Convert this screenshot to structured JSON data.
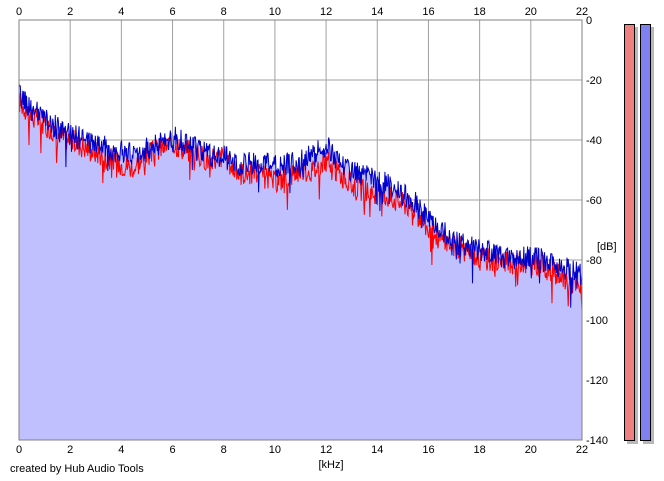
{
  "footer": {
    "credit": "created by Hub Audio Tools"
  },
  "meters": {
    "left_color": "#f08080",
    "right_color": "#8080f0"
  },
  "chart_data": {
    "type": "line",
    "subtype": "frequency-spectrum",
    "xlabel": "[kHz]",
    "ylabel": "[dB]",
    "xlim": [
      0,
      22
    ],
    "ylim": [
      -140,
      0
    ],
    "x_ticks": [
      0,
      2,
      4,
      6,
      8,
      10,
      12,
      14,
      16,
      18,
      20,
      22
    ],
    "y_ticks": [
      0,
      -20,
      -40,
      -60,
      -80,
      -100,
      -120,
      -140
    ],
    "x_tick_labels": [
      "0",
      "2",
      "4",
      "6",
      "8",
      "10",
      "12",
      "14",
      "16",
      "18",
      "20",
      "22"
    ],
    "y_tick_labels": [
      "0",
      "-20",
      "-40",
      "-60",
      "-80",
      "-100",
      "-120",
      "-140"
    ],
    "grid": true,
    "fill_color": "#c0c0ff",
    "series": [
      {
        "color": "#ff0000",
        "x": [
          0,
          0.5,
          1,
          1.5,
          2,
          2.5,
          3,
          3.5,
          4,
          4.5,
          5,
          5.5,
          6,
          6.5,
          7,
          7.5,
          8,
          8.5,
          9,
          9.5,
          10,
          10.5,
          11,
          11.5,
          12,
          12.5,
          13,
          13.5,
          14,
          14.5,
          15,
          15.5,
          16,
          16.5,
          17,
          17.5,
          18,
          18.5,
          19,
          19.5,
          20,
          20.5,
          21,
          21.5,
          22
        ],
        "values": [
          -27,
          -32,
          -35,
          -38,
          -40,
          -42,
          -44,
          -46,
          -48,
          -49,
          -45,
          -43,
          -41,
          -43,
          -45,
          -47,
          -45,
          -51,
          -51,
          -52,
          -54,
          -52,
          -50,
          -50,
          -47,
          -51,
          -55,
          -57,
          -58,
          -59,
          -61,
          -63,
          -70,
          -73,
          -75,
          -77,
          -79,
          -80,
          -81,
          -81,
          -81,
          -82,
          -85,
          -87,
          -90
        ]
      },
      {
        "color": "#0000cc",
        "x": [
          0,
          0.5,
          1,
          1.5,
          2,
          2.5,
          3,
          3.5,
          4,
          4.5,
          5,
          5.5,
          6,
          6.5,
          7,
          7.5,
          8,
          8.5,
          9,
          9.5,
          10,
          10.5,
          11,
          11.5,
          12,
          12.5,
          13,
          13.5,
          14,
          14.5,
          15,
          15.5,
          16,
          16.5,
          17,
          17.5,
          18,
          18.5,
          19,
          19.5,
          20,
          20.5,
          21,
          21.5,
          22
        ],
        "values": [
          -25,
          -30,
          -33,
          -36,
          -38,
          -40,
          -41,
          -43,
          -44,
          -45,
          -43,
          -41,
          -39,
          -41,
          -43,
          -45,
          -45,
          -49,
          -48,
          -48,
          -49,
          -48,
          -47,
          -45,
          -42,
          -47,
          -50,
          -52,
          -54,
          -55,
          -58,
          -61,
          -67,
          -70,
          -73,
          -75,
          -77,
          -78,
          -79,
          -79,
          -79,
          -80,
          -82,
          -83,
          -85
        ]
      }
    ]
  }
}
